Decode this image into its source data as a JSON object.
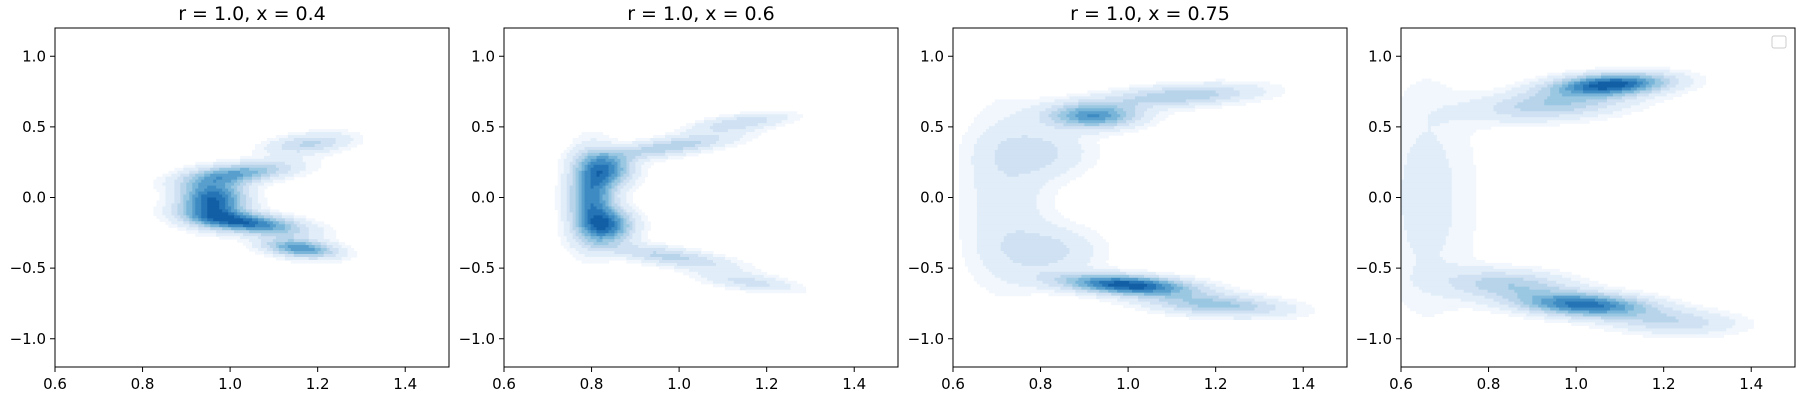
{
  "chart_data": [
    {
      "type": "contour",
      "title": "r = 1.0, x = 0.4",
      "xlim": [
        0.6,
        1.5
      ],
      "ylim": [
        -1.2,
        1.2
      ],
      "x_ticks": [
        "0.6",
        "0.8",
        "1.0",
        "1.2",
        "1.4"
      ],
      "y_ticks": [
        "1.0",
        "0.5",
        "0.0",
        "−0.5",
        "−1.0"
      ],
      "legend": false,
      "colormap": "Blues",
      "density_description": "Narrow V/chevron-shaped density opening to the right; apex near x=0.9, y=0.0; densest core near x=0.95–1.05, y=-0.15–0.1; lower arm extends to (1.2, -0.4), upper arm to (1.25, 0.45).",
      "components": [
        {
          "cx": 0.96,
          "cy": -0.02,
          "sx": 0.05,
          "sy": 0.1,
          "rot": 0,
          "w": 1.0
        },
        {
          "cx": 1.04,
          "cy": -0.18,
          "sx": 0.09,
          "sy": 0.045,
          "rot": -25,
          "w": 0.9
        },
        {
          "cx": 1.16,
          "cy": -0.36,
          "sx": 0.06,
          "sy": 0.04,
          "rot": -30,
          "w": 0.75
        },
        {
          "cx": 1.02,
          "cy": 0.17,
          "sx": 0.09,
          "sy": 0.045,
          "rot": 25,
          "w": 0.6
        },
        {
          "cx": 1.18,
          "cy": 0.38,
          "sx": 0.07,
          "sy": 0.045,
          "rot": 30,
          "w": 0.35
        }
      ]
    },
    {
      "type": "contour",
      "title": "r = 1.0, x = 0.6",
      "xlim": [
        0.6,
        1.5
      ],
      "ylim": [
        -1.2,
        1.2
      ],
      "x_ticks": [
        "0.6",
        "0.8",
        "1.0",
        "1.2",
        "1.4"
      ],
      "y_ticks": [
        "1.0",
        "0.5",
        "0.0",
        "−0.5",
        "−1.0"
      ],
      "legend": false,
      "colormap": "Blues",
      "density_description": "Thin V/chevron opening right; apex near x=0.78, y=0.0; densest near x=0.8–0.85, y=-0.25 to 0.2; arms reach (1.25, 0.6) and (1.25, -0.68).",
      "components": [
        {
          "cx": 0.8,
          "cy": 0.0,
          "sx": 0.035,
          "sy": 0.2,
          "rot": 0,
          "w": 1.0
        },
        {
          "cx": 0.84,
          "cy": -0.2,
          "sx": 0.04,
          "sy": 0.08,
          "rot": 0,
          "w": 0.9
        },
        {
          "cx": 0.84,
          "cy": 0.2,
          "sx": 0.04,
          "sy": 0.08,
          "rot": 0,
          "w": 0.75
        },
        {
          "cx": 0.98,
          "cy": 0.36,
          "sx": 0.11,
          "sy": 0.04,
          "rot": 28,
          "w": 0.5
        },
        {
          "cx": 1.14,
          "cy": 0.53,
          "sx": 0.08,
          "sy": 0.035,
          "rot": 25,
          "w": 0.38
        },
        {
          "cx": 0.98,
          "cy": -0.42,
          "sx": 0.11,
          "sy": 0.04,
          "rot": -28,
          "w": 0.45
        },
        {
          "cx": 1.16,
          "cy": -0.6,
          "sx": 0.08,
          "sy": 0.035,
          "rot": -25,
          "w": 0.32
        }
      ]
    },
    {
      "type": "contour",
      "title": "r = 1.0, x = 0.75",
      "xlim": [
        0.6,
        1.5
      ],
      "ylim": [
        -1.2,
        1.2
      ],
      "x_ticks": [
        "0.6",
        "0.8",
        "1.0",
        "1.2",
        "1.4"
      ],
      "y_ticks": [
        "1.0",
        "0.5",
        "0.0",
        "−0.5",
        "−1.0"
      ],
      "legend": false,
      "colormap": "Blues",
      "density_description": "Broad C/horseshoe shape opening right with two lobes; upper lobe near (0.9, 0.58) extending to (1.3, 0.8); lower, denser lobe near (1.0, -0.63) extending to (1.35, -0.85); faint connecting band near x=0.65–0.75.",
      "components": [
        {
          "cx": 0.92,
          "cy": 0.58,
          "sx": 0.07,
          "sy": 0.06,
          "rot": 0,
          "w": 0.7
        },
        {
          "cx": 1.12,
          "cy": 0.72,
          "sx": 0.12,
          "sy": 0.05,
          "rot": 12,
          "w": 0.4
        },
        {
          "cx": 1.0,
          "cy": -0.62,
          "sx": 0.1,
          "sy": 0.045,
          "rot": -12,
          "w": 1.0
        },
        {
          "cx": 1.2,
          "cy": -0.76,
          "sx": 0.11,
          "sy": 0.05,
          "rot": -12,
          "w": 0.45
        },
        {
          "cx": 0.72,
          "cy": 0.0,
          "sx": 0.07,
          "sy": 0.45,
          "rot": 0,
          "w": 0.16
        },
        {
          "cx": 0.82,
          "cy": -0.38,
          "sx": 0.08,
          "sy": 0.12,
          "rot": 0,
          "w": 0.22
        },
        {
          "cx": 0.8,
          "cy": 0.32,
          "sx": 0.08,
          "sy": 0.12,
          "rot": 0,
          "w": 0.2
        }
      ]
    },
    {
      "type": "contour",
      "title": "",
      "xlim": [
        0.6,
        1.5
      ],
      "ylim": [
        -1.2,
        1.2
      ],
      "x_ticks": [
        "0.6",
        "0.8",
        "1.0",
        "1.2",
        "1.4"
      ],
      "y_ticks": [
        "1.0",
        "0.5",
        "0.0",
        "−0.5",
        "−1.0"
      ],
      "legend": true,
      "legend_position": "upper right",
      "legend_entries": [],
      "colormap": "Blues",
      "density_description": "Wide C shape opening right; upper lobe densest near (1.08, 0.8) spanning x=0.85–1.35; lower lobe densest near (1.02, -0.78) spanning x=0.8–1.35; faint band along left edge x=0.6–0.75.",
      "components": [
        {
          "cx": 1.08,
          "cy": 0.8,
          "sx": 0.09,
          "sy": 0.05,
          "rot": 12,
          "w": 1.0
        },
        {
          "cx": 0.95,
          "cy": 0.66,
          "sx": 0.12,
          "sy": 0.07,
          "rot": 18,
          "w": 0.42
        },
        {
          "cx": 1.02,
          "cy": -0.76,
          "sx": 0.1,
          "sy": 0.055,
          "rot": -10,
          "w": 0.9
        },
        {
          "cx": 0.85,
          "cy": -0.62,
          "sx": 0.1,
          "sy": 0.07,
          "rot": -15,
          "w": 0.4
        },
        {
          "cx": 1.22,
          "cy": -0.88,
          "sx": 0.1,
          "sy": 0.06,
          "rot": -8,
          "w": 0.3
        },
        {
          "cx": 0.66,
          "cy": 0.0,
          "sx": 0.08,
          "sy": 0.6,
          "rot": 0,
          "w": 0.14
        }
      ]
    }
  ]
}
